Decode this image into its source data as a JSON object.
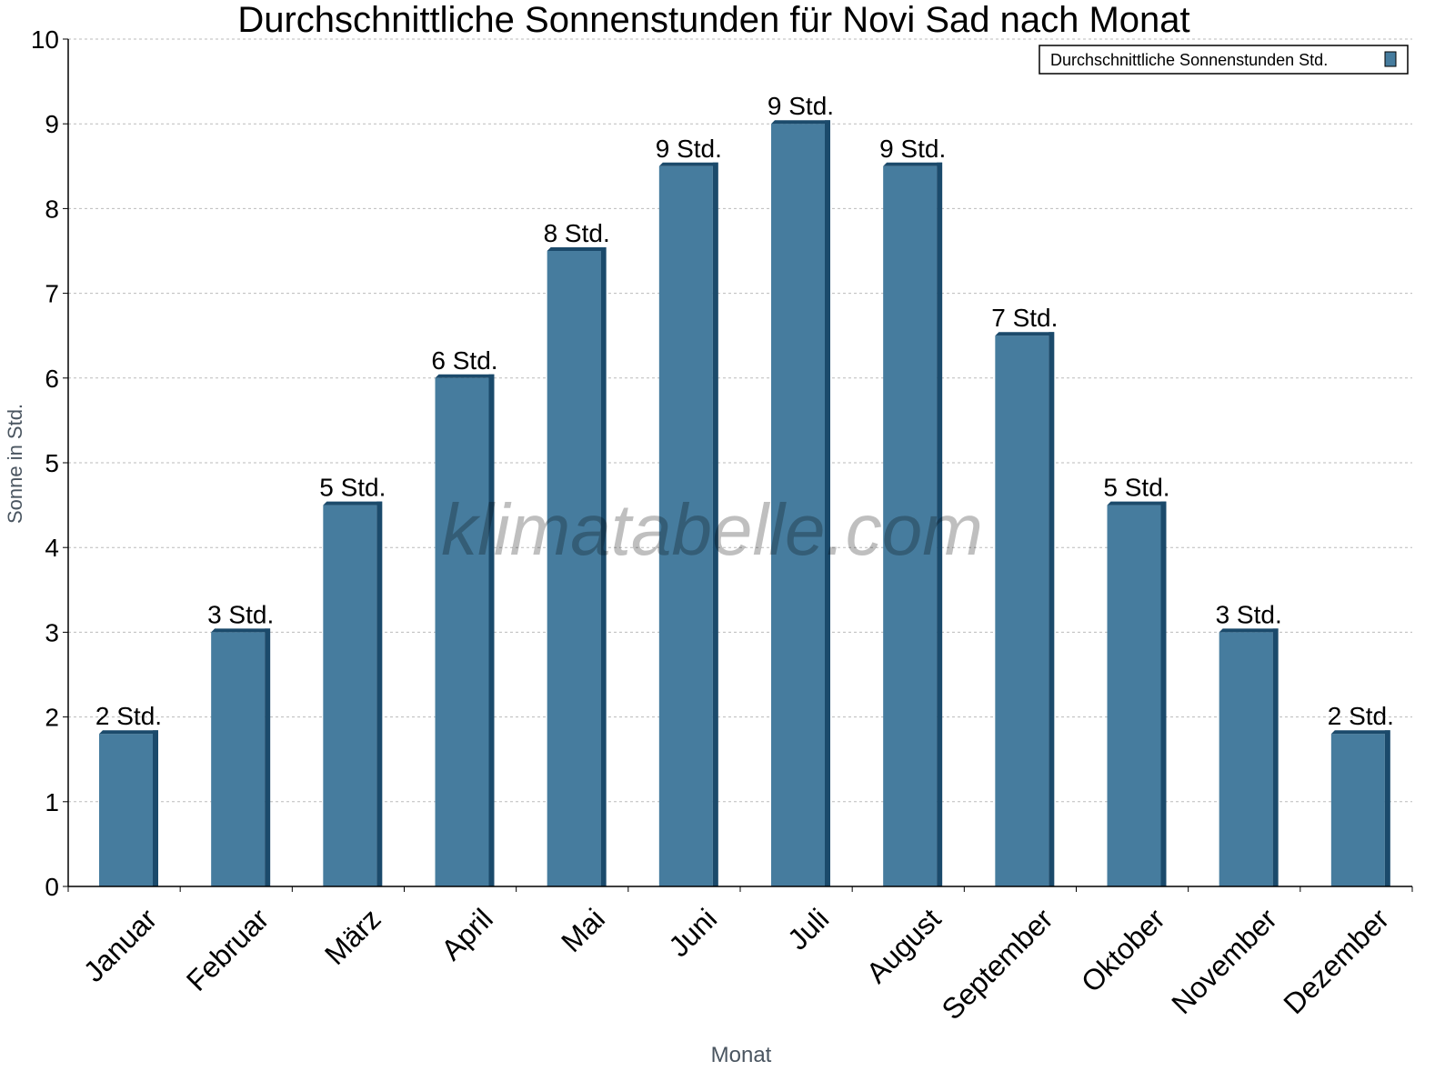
{
  "chart_data": {
    "type": "bar",
    "title": "Durchschnittliche Sonnenstunden für Novi Sad nach Monat",
    "xlabel": "Monat",
    "ylabel": "Sonne in Std.",
    "ylim": [
      0,
      10
    ],
    "yticks": [
      "0",
      "1",
      "2",
      "3",
      "4",
      "5",
      "6",
      "7",
      "8",
      "9",
      "10"
    ],
    "grid": true,
    "legend_position": "top-right",
    "categories": [
      "Januar",
      "Februar",
      "März",
      "April",
      "Mai",
      "Juni",
      "Juli",
      "August",
      "September",
      "Oktober",
      "November",
      "Dezember"
    ],
    "series": [
      {
        "name": "Durchschnittliche Sonnenstunden Std.",
        "values": [
          1.8,
          3.0,
          4.5,
          6.0,
          7.5,
          8.5,
          9.0,
          8.5,
          6.5,
          4.5,
          3.0,
          1.8
        ],
        "labels": [
          "2 Std.",
          "3 Std.",
          "5 Std.",
          "6 Std.",
          "8 Std.",
          "9 Std.",
          "9 Std.",
          "9 Std.",
          "7 Std.",
          "5 Std.",
          "3 Std.",
          "2 Std."
        ],
        "color": "#467c9e",
        "side_color": "#1b4a6b"
      }
    ],
    "watermark": "klimatabelle.com"
  }
}
